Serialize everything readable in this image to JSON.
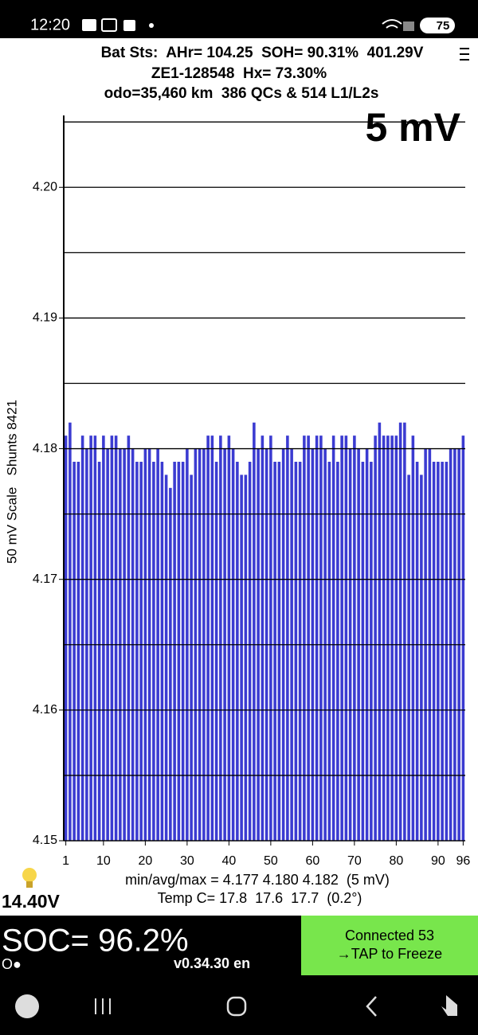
{
  "status_bar": {
    "time": "12:20",
    "battery": "75"
  },
  "header": {
    "line1": "Bat Sts:  AHr= 104.25  SOH= 90.31%  401.29V",
    "line2": "ZE1-128548  Hx= 73.30%",
    "line3": "odo=35,460 km  386 QCs & 514 L1/L2s"
  },
  "chart_data": {
    "type": "bar",
    "title": "5 mV",
    "y_label": "50 mV Scale   Shunts 8421",
    "color": "#3b3bd1",
    "grid": true,
    "x": [
      1,
      2,
      3,
      4,
      5,
      6,
      7,
      8,
      9,
      10,
      11,
      12,
      13,
      14,
      15,
      16,
      17,
      18,
      19,
      20,
      21,
      22,
      23,
      24,
      25,
      26,
      27,
      28,
      29,
      30,
      31,
      32,
      33,
      34,
      35,
      36,
      37,
      38,
      39,
      40,
      41,
      42,
      43,
      44,
      45,
      46,
      47,
      48,
      49,
      50,
      51,
      52,
      53,
      54,
      55,
      56,
      57,
      58,
      59,
      60,
      61,
      62,
      63,
      64,
      65,
      66,
      67,
      68,
      69,
      70,
      71,
      72,
      73,
      74,
      75,
      76,
      77,
      78,
      79,
      80,
      81,
      82,
      83,
      84,
      85,
      86,
      87,
      88,
      89,
      90,
      91,
      92,
      93,
      94,
      95,
      96
    ],
    "values": [
      4.181,
      4.182,
      4.179,
      4.179,
      4.181,
      4.18,
      4.181,
      4.181,
      4.179,
      4.181,
      4.18,
      4.181,
      4.181,
      4.18,
      4.18,
      4.181,
      4.18,
      4.179,
      4.179,
      4.18,
      4.18,
      4.179,
      4.18,
      4.179,
      4.178,
      4.177,
      4.179,
      4.179,
      4.179,
      4.18,
      4.178,
      4.18,
      4.18,
      4.18,
      4.181,
      4.181,
      4.179,
      4.181,
      4.18,
      4.181,
      4.18,
      4.179,
      4.178,
      4.178,
      4.179,
      4.182,
      4.18,
      4.181,
      4.18,
      4.181,
      4.179,
      4.179,
      4.18,
      4.181,
      4.18,
      4.179,
      4.179,
      4.181,
      4.181,
      4.18,
      4.181,
      4.181,
      4.18,
      4.179,
      4.181,
      4.179,
      4.181,
      4.181,
      4.18,
      4.181,
      4.18,
      4.179,
      4.18,
      4.179,
      4.181,
      4.182,
      4.181,
      4.181,
      4.181,
      4.181,
      4.182,
      4.182,
      4.178,
      4.181,
      4.179,
      4.178,
      4.18,
      4.18,
      4.179,
      4.179,
      4.179,
      4.179,
      4.18,
      4.18,
      4.18,
      4.181
    ],
    "xlim": [
      0.5,
      96.5
    ],
    "xticks": [
      1,
      10,
      20,
      30,
      40,
      50,
      60,
      70,
      80,
      90,
      96
    ],
    "ylim": [
      4.15,
      4.2055
    ],
    "yticks": [
      4.15,
      4.16,
      4.17,
      4.18,
      4.19,
      {
        "value": 4.2,
        "label": "4.20"
      }
    ],
    "minor_yticks": [
      4.155,
      4.165,
      4.175,
      4.185,
      4.195,
      4.205
    ],
    "stats": "min/avg/max = 4.177 4.180 4.182  (5 mV)",
    "temps": "Temp C= 17.8  17.6  17.7  (0.2°)"
  },
  "footer": {
    "voltage": "14.40V",
    "soc": "SOC= 96.2%",
    "indicator": "O●",
    "version": "v0.34.30 en",
    "button_line1": "Connected 53",
    "button_line2": "→TAP to Freeze"
  }
}
